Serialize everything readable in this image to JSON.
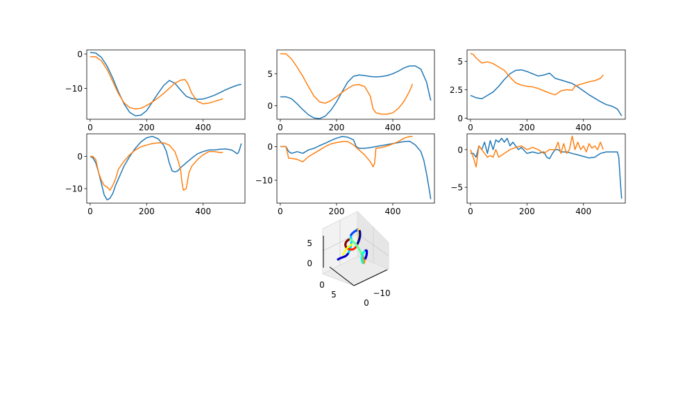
{
  "colors": {
    "series_1": "#1f77b4",
    "series_2": "#ff7f0e"
  },
  "chart_data": [
    {
      "type": "line",
      "panel": "top-left",
      "xlim": [
        -12,
        548
      ],
      "ylim": [
        -19,
        1.2
      ],
      "xticks": [
        0,
        200,
        400
      ],
      "yticks": [
        -10,
        0
      ],
      "series": [
        {
          "x": [
            0,
            20,
            40,
            60,
            80,
            100,
            120,
            140,
            160,
            180,
            200,
            220,
            240,
            260,
            280,
            300,
            320,
            340,
            360,
            380,
            400,
            420,
            440,
            460,
            480,
            500,
            520,
            535
          ],
          "y": [
            0.5,
            0.3,
            -1,
            -3.5,
            -7,
            -11,
            -14.5,
            -17,
            -18,
            -17.8,
            -16.5,
            -14,
            -11.5,
            -9.2,
            -7.7,
            -8.5,
            -10.5,
            -12.3,
            -13,
            -13.2,
            -13.1,
            -12.6,
            -12,
            -11.2,
            -10.4,
            -9.7,
            -9.1,
            -8.8
          ]
        },
        {
          "x": [
            0,
            20,
            40,
            60,
            80,
            100,
            120,
            140,
            160,
            180,
            200,
            220,
            240,
            260,
            280,
            300,
            320,
            335,
            345,
            360,
            380,
            400,
            420,
            440,
            460,
            470
          ],
          "y": [
            -0.8,
            -0.8,
            -2,
            -4.5,
            -8,
            -11.5,
            -14.2,
            -15.6,
            -16,
            -15.8,
            -15,
            -14,
            -12.8,
            -11.5,
            -10,
            -8.5,
            -7.6,
            -7.4,
            -8.5,
            -11.5,
            -13.8,
            -14.5,
            -14.3,
            -13.8,
            -13.3,
            -13
          ]
        }
      ]
    },
    {
      "type": "line",
      "panel": "top-middle",
      "xlim": [
        -12,
        548
      ],
      "ylim": [
        -2.1,
        8.7
      ],
      "xticks": [
        0,
        200,
        400
      ],
      "yticks": [
        0,
        5
      ],
      "series": [
        {
          "x": [
            0,
            20,
            40,
            60,
            80,
            100,
            120,
            140,
            160,
            180,
            200,
            220,
            240,
            260,
            280,
            300,
            320,
            340,
            360,
            380,
            400,
            420,
            440,
            460,
            480,
            500,
            520,
            535
          ],
          "y": [
            1.4,
            1.4,
            1.1,
            0.3,
            -0.6,
            -1.4,
            -1.9,
            -2,
            -1.6,
            -0.7,
            0.6,
            2.2,
            3.7,
            4.6,
            4.8,
            4.7,
            4.55,
            4.5,
            4.55,
            4.7,
            5,
            5.4,
            5.9,
            6.2,
            6.2,
            5.7,
            3.7,
            0.8
          ]
        },
        {
          "x": [
            0,
            20,
            40,
            60,
            80,
            100,
            120,
            140,
            160,
            180,
            200,
            220,
            240,
            260,
            280,
            300,
            320,
            330,
            340,
            360,
            380,
            400,
            420,
            440,
            460,
            470
          ],
          "y": [
            8.1,
            8.1,
            7.3,
            6,
            4.6,
            3,
            1.5,
            0.6,
            0.4,
            0.8,
            1.4,
            2.1,
            2.7,
            3.2,
            3.3,
            3,
            1.5,
            -0.5,
            -1.1,
            -1.3,
            -1.3,
            -1.1,
            -0.4,
            0.7,
            2.3,
            3.4
          ]
        }
      ]
    },
    {
      "type": "line",
      "panel": "top-right",
      "xlim": [
        -12,
        548
      ],
      "ylim": [
        -0.1,
        6.0
      ],
      "xticks": [
        0,
        200,
        400
      ],
      "yticks": [
        0.0,
        2.5,
        5.0
      ],
      "series": [
        {
          "x": [
            0,
            20,
            40,
            60,
            80,
            100,
            120,
            140,
            160,
            180,
            200,
            220,
            240,
            260,
            280,
            300,
            320,
            340,
            360,
            380,
            400,
            420,
            440,
            460,
            480,
            500,
            520,
            535
          ],
          "y": [
            2,
            1.8,
            1.7,
            2,
            2.3,
            2.8,
            3.4,
            3.9,
            4.2,
            4.25,
            4.1,
            3.9,
            3.7,
            3.8,
            3.95,
            3.5,
            3.35,
            3.2,
            3.05,
            2.75,
            2.4,
            2.05,
            1.75,
            1.45,
            1.2,
            1.05,
            0.8,
            0.2
          ]
        },
        {
          "x": [
            0,
            10,
            20,
            40,
            60,
            80,
            100,
            120,
            140,
            160,
            180,
            200,
            220,
            240,
            260,
            280,
            300,
            320,
            340,
            360,
            370,
            380,
            400,
            420,
            440,
            460,
            470
          ],
          "y": [
            5.7,
            5.6,
            5.3,
            4.85,
            4.95,
            4.8,
            4.5,
            4.2,
            3.6,
            3.1,
            2.9,
            2.8,
            2.75,
            2.6,
            2.4,
            2.2,
            2.05,
            2.4,
            2.5,
            2.45,
            2.8,
            2.9,
            3.05,
            3.2,
            3.3,
            3.5,
            3.8
          ]
        }
      ]
    },
    {
      "type": "line",
      "panel": "middle-left",
      "xlim": [
        -12,
        548
      ],
      "ylim": [
        -14.5,
        7
      ],
      "xticks": [
        0,
        200,
        400
      ],
      "yticks": [
        -10,
        0
      ],
      "series": [
        {
          "x": [
            0,
            10,
            20,
            30,
            40,
            50,
            60,
            70,
            80,
            90,
            100,
            120,
            140,
            160,
            180,
            200,
            220,
            240,
            260,
            270,
            280,
            290,
            300,
            310,
            320,
            340,
            360,
            380,
            400,
            420,
            440,
            460,
            480,
            500,
            510,
            520,
            525,
            530,
            535
          ],
          "y": [
            0,
            -0.5,
            -2,
            -5,
            -8.5,
            -12,
            -13.5,
            -13,
            -11.5,
            -9,
            -7,
            -3,
            0,
            2.5,
            4.5,
            5.8,
            6.2,
            5.5,
            3.5,
            1.5,
            -2,
            -4.5,
            -4.8,
            -4.5,
            -3.5,
            -2,
            -0.5,
            0.8,
            1.5,
            2,
            2,
            2.2,
            2.3,
            2,
            1.5,
            0.8,
            1.2,
            2.5,
            4
          ]
        },
        {
          "x": [
            0,
            10,
            20,
            30,
            40,
            50,
            60,
            70,
            80,
            90,
            100,
            120,
            140,
            160,
            180,
            200,
            220,
            240,
            260,
            280,
            300,
            310,
            320,
            325,
            330,
            340,
            350,
            360,
            380,
            400,
            420,
            440,
            460,
            470
          ],
          "y": [
            0,
            0,
            -1,
            -5,
            -7.5,
            -9,
            -9.5,
            -10.5,
            -9,
            -7,
            -4,
            -1.5,
            0.5,
            2,
            3,
            3.5,
            4,
            4.2,
            4.2,
            3.5,
            1.5,
            -1,
            -4,
            -8,
            -10.5,
            -10,
            -5,
            -3,
            -1,
            0.5,
            1.5,
            1.5,
            1.2,
            1.3
          ]
        }
      ]
    },
    {
      "type": "line",
      "panel": "middle-center",
      "xlim": [
        -12,
        548
      ],
      "ylim": [
        -16.8,
        3.8
      ],
      "xticks": [
        0,
        200,
        400
      ],
      "yticks": [
        -10,
        0
      ],
      "series": [
        {
          "x": [
            0,
            20,
            30,
            40,
            60,
            80,
            100,
            120,
            140,
            160,
            180,
            200,
            220,
            240,
            260,
            270,
            280,
            300,
            320,
            340,
            360,
            380,
            400,
            420,
            440,
            460,
            480,
            500,
            510,
            520,
            530,
            535
          ],
          "y": [
            0,
            0,
            -1.5,
            -2,
            -1.5,
            -2,
            -1,
            -0.5,
            0.3,
            1,
            1.8,
            2.5,
            3,
            2.8,
            2,
            0,
            -0.5,
            -0.5,
            -0.3,
            0,
            0.3,
            0.6,
            0.9,
            1.2,
            1.5,
            1.6,
            0.5,
            -1.5,
            -4,
            -8,
            -13,
            -15.6
          ]
        },
        {
          "x": [
            0,
            20,
            30,
            40,
            60,
            80,
            100,
            120,
            140,
            160,
            180,
            200,
            220,
            240,
            260,
            280,
            300,
            320,
            330,
            335,
            340,
            360,
            380,
            400,
            420,
            440,
            460,
            470
          ],
          "y": [
            0,
            0,
            -3.5,
            -3.5,
            -3.8,
            -4.5,
            -3,
            -2,
            -1,
            0,
            0.8,
            1.2,
            1.5,
            1.5,
            0.5,
            -1,
            -2.5,
            -4.5,
            -6,
            -5,
            -0.5,
            -0.3,
            0.2,
            0.8,
            1.5,
            2.5,
            3,
            3
          ]
        }
      ]
    },
    {
      "type": "line",
      "panel": "middle-right",
      "xlim": [
        -12,
        548
      ],
      "ylim": [
        -7.1,
        2.1
      ],
      "xticks": [
        0,
        200,
        400
      ],
      "yticks": [
        -5,
        0
      ],
      "series": [
        {
          "x": [
            0,
            10,
            20,
            30,
            40,
            50,
            60,
            70,
            80,
            90,
            100,
            110,
            120,
            130,
            140,
            150,
            160,
            170,
            180,
            200,
            220,
            240,
            260,
            270,
            280,
            290,
            300,
            310,
            320,
            340,
            360,
            380,
            400,
            420,
            440,
            460,
            480,
            500,
            520,
            525,
            530,
            535
          ],
          "y": [
            -0.5,
            -0.5,
            -1,
            0.5,
            0,
            1,
            -0.5,
            1.2,
            0,
            1.3,
            1,
            1.5,
            1,
            1.5,
            0.5,
            1,
            0.5,
            0,
            0.3,
            -0.5,
            -0.3,
            -0.5,
            -0.3,
            -1,
            -1.2,
            -0.5,
            0,
            0,
            -0.3,
            -0.3,
            -0.5,
            -0.7,
            -0.9,
            -1.1,
            -1,
            -0.5,
            -0.3,
            -0.3,
            -0.3,
            -1,
            -4,
            -6.5
          ]
        },
        {
          "x": [
            0,
            10,
            20,
            30,
            40,
            50,
            60,
            70,
            80,
            90,
            100,
            120,
            140,
            160,
            180,
            200,
            220,
            240,
            260,
            280,
            300,
            310,
            320,
            330,
            340,
            350,
            360,
            370,
            380,
            390,
            400,
            410,
            420,
            430,
            440,
            450,
            460,
            470
          ],
          "y": [
            0,
            -1,
            -2.3,
            0.5,
            0,
            -0.5,
            -1,
            -0.8,
            -1,
            0,
            -1,
            -0.5,
            0,
            0.3,
            0.5,
            0,
            0.3,
            0,
            -0.5,
            0,
            0,
            1,
            -0.5,
            0.8,
            -0.5,
            0,
            1.8,
            0,
            1,
            0,
            0.5,
            -0.3,
            0.8,
            0.2,
            0.5,
            0,
            1,
            0
          ]
        }
      ]
    },
    {
      "type": "scatter",
      "panel": "bottom-3d",
      "ztick_labels": [
        "5",
        "0"
      ],
      "ytick_labels": [
        "0",
        "5"
      ],
      "xtick_labels": [
        "−10",
        "0"
      ],
      "colormap": "jet"
    }
  ]
}
